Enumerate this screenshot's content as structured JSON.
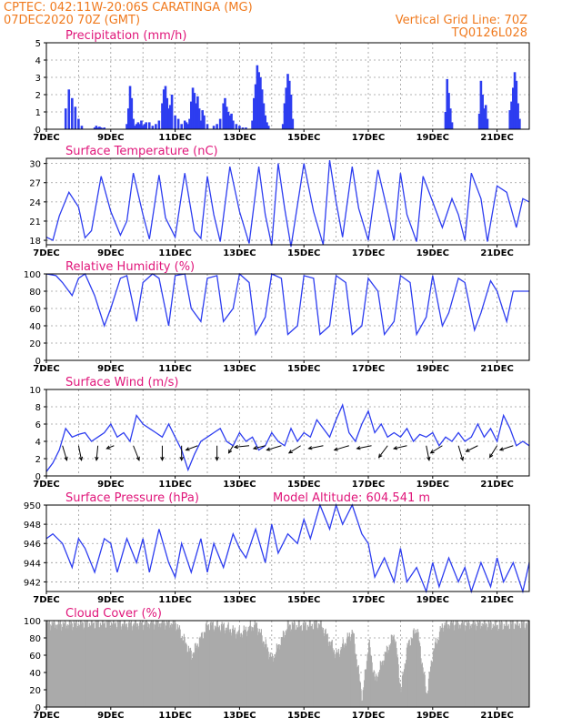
{
  "header": {
    "line1_left": "CPTEC:   042:11W-20:06S  CARATINGA (MG)",
    "line2_left": "07DEC2020 70Z (GMT)",
    "line1_right": "Vertical Grid Line: 70Z",
    "line2_right": "TQ0126L028"
  },
  "colors": {
    "header": "#f07a1e",
    "title": "#e0167a",
    "line": "#2d3df0",
    "bar": "#2d3df0",
    "cloud": "#aaaaaa",
    "arrow": "#000000"
  },
  "x_axis": {
    "start": "07DEC2020 00Z",
    "end": "22DEC2020 00Z",
    "day_labels": [
      "7DEC",
      "9DEC",
      "11DEC",
      "13DEC",
      "15DEC",
      "17DEC",
      "19DEC",
      "21DEC"
    ]
  },
  "chart_data": [
    {
      "id": "precip",
      "type": "bar",
      "title": "Precipitation (mm/h)",
      "ylim": [
        0,
        5
      ],
      "yticks": [
        0,
        1,
        2,
        3,
        4,
        5
      ],
      "grid": true,
      "x": [
        0.6,
        0.7,
        0.8,
        0.9,
        1.0,
        1.1,
        1.5,
        1.55,
        1.6,
        1.65,
        1.7,
        1.75,
        1.8,
        2.5,
        2.55,
        2.6,
        2.65,
        2.7,
        2.75,
        2.8,
        2.85,
        2.9,
        2.95,
        3.0,
        3.05,
        3.1,
        3.2,
        3.3,
        3.4,
        3.5,
        3.6,
        3.65,
        3.7,
        3.75,
        3.8,
        3.85,
        3.9,
        4.0,
        4.1,
        4.2,
        4.3,
        4.35,
        4.4,
        4.45,
        4.5,
        4.55,
        4.6,
        4.65,
        4.7,
        4.75,
        4.8,
        4.85,
        4.9,
        5.0,
        5.2,
        5.3,
        5.4,
        5.5,
        5.55,
        5.6,
        5.65,
        5.7,
        5.75,
        5.8,
        5.9,
        6.0,
        6.1,
        6.2,
        6.4,
        6.45,
        6.5,
        6.55,
        6.6,
        6.65,
        6.7,
        6.75,
        6.8,
        6.85,
        6.9,
        7.35,
        7.4,
        7.45,
        7.5,
        7.55,
        7.6,
        7.65,
        12.4,
        12.45,
        12.5,
        12.55,
        12.6,
        13.45,
        13.5,
        13.55,
        13.6,
        13.65,
        13.7,
        14.4,
        14.45,
        14.5,
        14.55,
        14.6,
        14.65,
        14.7
      ],
      "values": [
        1.2,
        2.3,
        1.8,
        1.3,
        0.6,
        0.2,
        0.1,
        0.2,
        0.1,
        0.15,
        0.1,
        0.05,
        0.1,
        0.3,
        1.2,
        2.5,
        1.8,
        0.6,
        0.2,
        0.3,
        0.4,
        0.3,
        0.5,
        0.2,
        0.3,
        0.4,
        0.4,
        0.2,
        0.3,
        0.5,
        1.5,
        2.3,
        2.5,
        1.8,
        1.2,
        1.4,
        2.0,
        0.8,
        0.6,
        0.3,
        0.5,
        0.4,
        0.3,
        0.6,
        1.6,
        2.4,
        2.1,
        1.5,
        1.9,
        1.2,
        0.5,
        1.1,
        0.8,
        0.3,
        0.2,
        0.3,
        0.6,
        1.5,
        1.8,
        1.3,
        1.0,
        0.8,
        0.9,
        0.5,
        0.3,
        0.2,
        0.1,
        0.1,
        0.5,
        1.8,
        2.6,
        3.7,
        3.3,
        3.0,
        2.3,
        1.5,
        0.8,
        0.4,
        0.2,
        0.3,
        1.5,
        2.4,
        3.2,
        2.8,
        2.0,
        0.6,
        1.0,
        2.9,
        2.1,
        1.2,
        0.4,
        0.9,
        2.8,
        2.0,
        1.2,
        1.4,
        0.6,
        1.1,
        1.6,
        2.4,
        3.3,
        2.8,
        1.5,
        0.6
      ]
    },
    {
      "id": "temperature",
      "type": "line",
      "title": "Surface Temperature (nC)",
      "ylim": [
        17.3,
        30.8
      ],
      "yticks": [
        18,
        21,
        24,
        27,
        30
      ],
      "grid": true,
      "x": [
        0,
        0.2,
        0.4,
        0.7,
        1.0,
        1.2,
        1.4,
        1.7,
        2.0,
        2.3,
        2.5,
        2.7,
        3.0,
        3.2,
        3.5,
        3.7,
        4.0,
        4.3,
        4.6,
        4.8,
        5.0,
        5.2,
        5.4,
        5.7,
        6.0,
        6.3,
        6.6,
        6.8,
        7.0,
        7.2,
        7.4,
        7.6,
        8.0,
        8.3,
        8.6,
        8.8,
        9.0,
        9.2,
        9.5,
        9.7,
        10.0,
        10.3,
        10.6,
        10.8,
        11.0,
        11.2,
        11.5,
        11.7,
        12.0,
        12.3,
        12.6,
        12.8,
        13.0,
        13.2,
        13.5,
        13.7,
        14.0,
        14.3,
        14.6,
        14.8,
        15.0
      ],
      "values": [
        18.5,
        18.0,
        21.8,
        25.5,
        23.2,
        18.4,
        19.5,
        28.0,
        22.5,
        18.8,
        21.0,
        28.5,
        22.0,
        18.2,
        28.2,
        21.5,
        18.5,
        28.5,
        19.5,
        18.3,
        28.0,
        22.0,
        17.8,
        29.5,
        22.5,
        17.5,
        29.5,
        22.0,
        17.2,
        30.0,
        23.0,
        17.0,
        30.0,
        22.5,
        17.3,
        30.5,
        24.0,
        18.5,
        29.5,
        23.0,
        18.0,
        29.0,
        22.5,
        18.0,
        28.5,
        22.0,
        17.8,
        28.0,
        24.0,
        20.0,
        24.5,
        22.0,
        18.0,
        28.5,
        24.5,
        17.8,
        26.5,
        25.5,
        20.0,
        24.5,
        24.0
      ]
    },
    {
      "id": "humidity",
      "type": "line",
      "title": "Relative Humidity (%)",
      "ylim": [
        0,
        100
      ],
      "yticks": [
        0,
        20,
        40,
        60,
        80,
        100
      ],
      "grid": true,
      "x": [
        0,
        0.3,
        0.5,
        0.8,
        1.0,
        1.2,
        1.5,
        1.8,
        2.0,
        2.3,
        2.5,
        2.8,
        3.0,
        3.3,
        3.5,
        3.8,
        4.0,
        4.3,
        4.5,
        4.8,
        5.0,
        5.3,
        5.5,
        5.8,
        6.0,
        6.3,
        6.5,
        6.8,
        7.0,
        7.3,
        7.5,
        7.8,
        8.0,
        8.3,
        8.5,
        8.8,
        9.0,
        9.3,
        9.5,
        9.8,
        10.0,
        10.3,
        10.5,
        10.8,
        11.0,
        11.3,
        11.5,
        11.8,
        12.0,
        12.3,
        12.5,
        12.8,
        13.0,
        13.3,
        13.5,
        13.8,
        14.0,
        14.3,
        14.5,
        14.8,
        15.0
      ],
      "values": [
        100,
        98,
        90,
        75,
        95,
        100,
        75,
        40,
        60,
        95,
        98,
        45,
        90,
        100,
        95,
        40,
        98,
        100,
        60,
        45,
        95,
        98,
        45,
        60,
        100,
        90,
        30,
        50,
        100,
        95,
        30,
        40,
        98,
        95,
        30,
        40,
        98,
        90,
        30,
        40,
        95,
        80,
        30,
        45,
        98,
        90,
        30,
        50,
        98,
        40,
        55,
        95,
        90,
        35,
        55,
        92,
        80,
        45,
        80,
        80,
        80
      ]
    },
    {
      "id": "wind",
      "type": "line",
      "title": "Surface Wind (m/s)",
      "ylim": [
        0,
        10
      ],
      "yticks": [
        0,
        2,
        4,
        6,
        8,
        10
      ],
      "grid": true,
      "x": [
        0,
        0.2,
        0.4,
        0.6,
        0.8,
        1.0,
        1.2,
        1.4,
        1.6,
        1.8,
        2.0,
        2.2,
        2.4,
        2.6,
        2.8,
        3.0,
        3.2,
        3.4,
        3.6,
        3.8,
        4.0,
        4.2,
        4.4,
        4.6,
        4.8,
        5.0,
        5.2,
        5.4,
        5.6,
        5.8,
        6.0,
        6.2,
        6.4,
        6.6,
        6.8,
        7.0,
        7.2,
        7.4,
        7.6,
        7.8,
        8.0,
        8.2,
        8.4,
        8.6,
        8.8,
        9.0,
        9.2,
        9.4,
        9.6,
        9.8,
        10.0,
        10.2,
        10.4,
        10.6,
        10.8,
        11.0,
        11.2,
        11.4,
        11.6,
        11.8,
        12.0,
        12.2,
        12.4,
        12.6,
        12.8,
        13.0,
        13.2,
        13.4,
        13.6,
        13.8,
        14.0,
        14.2,
        14.4,
        14.6,
        14.8,
        15.0
      ],
      "values": [
        0.5,
        1.5,
        3.0,
        5.5,
        4.5,
        4.8,
        5.0,
        4.0,
        4.5,
        5.0,
        6.0,
        4.5,
        5.0,
        4.0,
        7.0,
        6.0,
        5.5,
        5.0,
        4.5,
        6.0,
        4.5,
        3.0,
        0.7,
        2.5,
        4.0,
        4.5,
        5.0,
        5.5,
        4.0,
        3.5,
        5.0,
        4.0,
        4.5,
        3.0,
        3.5,
        5.0,
        4.0,
        3.5,
        5.5,
        4.0,
        5.0,
        4.5,
        6.5,
        5.5,
        4.5,
        6.5,
        8.2,
        5.0,
        4.0,
        6.0,
        7.5,
        5.0,
        6.0,
        4.5,
        5.0,
        4.5,
        5.5,
        4.0,
        4.8,
        4.5,
        5.0,
        3.5,
        4.5,
        4.0,
        5.0,
        4.0,
        4.5,
        6.0,
        4.5,
        5.5,
        4.0,
        7.0,
        5.5,
        3.5,
        4.0,
        3.5
      ],
      "arrows": {
        "x": [
          0.5,
          1.0,
          1.6,
          2.1,
          2.7,
          3.6,
          4.2,
          4.7,
          5.3,
          5.8,
          6.3,
          6.8,
          7.3,
          7.9,
          8.6,
          9.4,
          10.1,
          10.6,
          11.2,
          11.8,
          12.3,
          12.8,
          13.4,
          14.0,
          14.5
        ],
        "dx": [
          0.3,
          0.2,
          -0.1,
          -0.5,
          0.4,
          0.0,
          0.0,
          -0.8,
          0.0,
          -0.3,
          -1.0,
          -0.8,
          -1.0,
          -0.8,
          -1.0,
          -1.0,
          -1.0,
          -0.6,
          -0.9,
          0.2,
          -0.8,
          0.3,
          -0.8,
          -0.5,
          -0.9
        ],
        "dy": [
          -1.0,
          -1.0,
          -1.0,
          -0.2,
          -1.0,
          -1.0,
          -1.0,
          -0.3,
          -1.0,
          -0.5,
          -0.1,
          -0.2,
          -0.3,
          -0.5,
          -0.2,
          -0.3,
          -0.2,
          -0.8,
          -0.2,
          -1.0,
          -0.5,
          -1.0,
          -0.4,
          -0.8,
          -0.3
        ]
      }
    },
    {
      "id": "pressure",
      "type": "line",
      "title": "Surface Pressure (hPa)",
      "extra_label": "Model Altitude: 604.541 m",
      "ylim": [
        941,
        950
      ],
      "yticks": [
        942,
        944,
        946,
        948,
        950
      ],
      "grid": true,
      "x": [
        0,
        0.2,
        0.5,
        0.8,
        1.0,
        1.2,
        1.5,
        1.8,
        2.0,
        2.2,
        2.5,
        2.8,
        3.0,
        3.2,
        3.5,
        3.8,
        4.0,
        4.2,
        4.5,
        4.8,
        5.0,
        5.2,
        5.5,
        5.8,
        6.0,
        6.2,
        6.5,
        6.8,
        7.0,
        7.2,
        7.5,
        7.8,
        8.0,
        8.2,
        8.5,
        8.8,
        9.0,
        9.2,
        9.5,
        9.8,
        10.0,
        10.2,
        10.5,
        10.8,
        11.0,
        11.2,
        11.5,
        11.8,
        12.0,
        12.2,
        12.5,
        12.8,
        13.0,
        13.2,
        13.5,
        13.8,
        14.0,
        14.2,
        14.5,
        14.8,
        15.0
      ],
      "values": [
        946.5,
        947.0,
        946.0,
        943.5,
        946.5,
        945.5,
        943.0,
        946.5,
        946.0,
        943.0,
        946.5,
        944.0,
        946.5,
        943.0,
        947.5,
        944.0,
        942.5,
        946.0,
        943.0,
        946.5,
        943.0,
        946.0,
        943.5,
        947.0,
        945.5,
        944.5,
        947.5,
        944.0,
        948.0,
        945.0,
        947.0,
        946.0,
        948.5,
        946.5,
        950.0,
        947.5,
        950.0,
        948.0,
        950.0,
        947.0,
        946.0,
        942.5,
        944.5,
        942.0,
        945.5,
        942.0,
        943.5,
        941.0,
        944.0,
        941.5,
        944.5,
        942.0,
        943.5,
        941.0,
        944.0,
        941.5,
        944.5,
        942.0,
        944.0,
        941.0,
        944.0
      ]
    },
    {
      "id": "cloud",
      "type": "area",
      "title": "Cloud Cover (%)",
      "ylim": [
        0,
        100
      ],
      "yticks": [
        0,
        20,
        40,
        60,
        80,
        100
      ],
      "grid": true,
      "x": [
        0,
        0.5,
        1.0,
        1.5,
        2.0,
        2.5,
        3.0,
        3.5,
        4.0,
        4.5,
        5.0,
        5.5,
        6.0,
        6.5,
        7.0,
        7.5,
        8.0,
        8.5,
        9.0,
        9.5,
        9.8,
        10.0,
        10.2,
        10.5,
        10.8,
        11.0,
        11.2,
        11.5,
        11.8,
        12.0,
        12.3,
        12.6,
        13.0,
        13.5,
        14.0,
        14.5,
        15.0
      ],
      "values": [
        97,
        96,
        97,
        97,
        98,
        96,
        97,
        98,
        97,
        60,
        95,
        93,
        85,
        96,
        55,
        95,
        94,
        97,
        60,
        88,
        10,
        75,
        30,
        60,
        85,
        20,
        70,
        92,
        15,
        65,
        95,
        97,
        96,
        97,
        95,
        96,
        97
      ]
    }
  ]
}
